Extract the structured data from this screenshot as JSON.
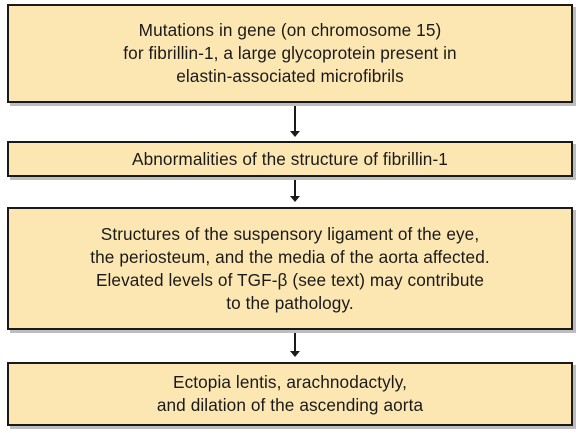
{
  "flowchart": {
    "boxes": [
      {
        "text": "Mutations in gene (on chromosome 15)\nfor fibrillin-1, a large glycoprotein present in\nelastin-associated microfibrils"
      },
      {
        "text": "Abnormalities of the structure of fibrillin-1"
      },
      {
        "text": "Structures of the suspensory ligament of the eye,\nthe periosteum, and the media of the aorta affected.\nElevated levels of TGF-β (see text) may contribute\nto the pathology."
      },
      {
        "text": "Ectopia lentis, arachnodactyly,\nand dilation of the ascending aorta"
      }
    ],
    "colors": {
      "box_fill": "#fce7b3",
      "border": "#1a1a1a",
      "shadow": "#bdbdbd"
    }
  }
}
